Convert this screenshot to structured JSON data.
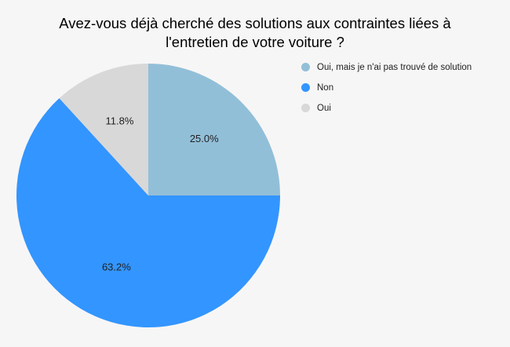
{
  "chart_data": {
    "type": "pie",
    "title_lines": [
      "Avez-vous déjà cherché des solutions aux contraintes liées à",
      "l'entretien de votre voiture ?"
    ],
    "slices": [
      {
        "name": "Oui, mais je n'ai pas trouvé de solution",
        "value": 25.0,
        "label": "25.0%",
        "color": "#92bfd8"
      },
      {
        "name": "Non",
        "value": 63.2,
        "label": "63.2%",
        "color": "#3395ff"
      },
      {
        "name": "Oui",
        "value": 11.8,
        "label": "11.8%",
        "color": "#d8d8d8"
      }
    ],
    "start_angle": "12 o'clock",
    "direction": "clockwise",
    "legend_placement": "top-right"
  }
}
